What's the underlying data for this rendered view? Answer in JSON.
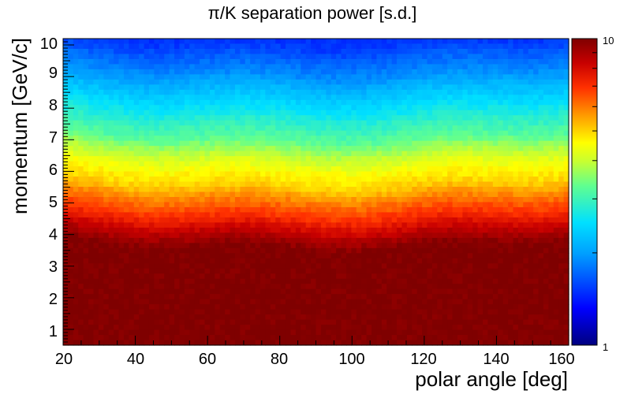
{
  "chart_data": {
    "type": "heatmap",
    "title": "π/K separation power [s.d.]",
    "xlabel": "polar angle [deg]",
    "ylabel": "momentum [GeV/c]",
    "xlim": [
      20,
      160
    ],
    "ylim": [
      0.5,
      10.2
    ],
    "x_ticks": [
      "20",
      "40",
      "60",
      "80",
      "100",
      "120",
      "140",
      "160"
    ],
    "y_ticks": [
      "1",
      "2",
      "3",
      "4",
      "5",
      "6",
      "7",
      "8",
      "9",
      "10"
    ],
    "colorbar": {
      "min": 1,
      "max": 10,
      "scale": "log",
      "labels": [
        "10",
        "1"
      ],
      "palette": "rainbow"
    },
    "description_points": [
      {
        "momentum": 1.0,
        "separation": 10
      },
      {
        "momentum": 3.5,
        "separation": 10
      },
      {
        "momentum": 4.0,
        "separation": 8.5
      },
      {
        "momentum": 4.5,
        "separation": 7
      },
      {
        "momentum": 5.0,
        "separation": 6
      },
      {
        "momentum": 5.5,
        "separation": 5
      },
      {
        "momentum": 6.0,
        "separation": 4.5
      },
      {
        "momentum": 7.0,
        "separation": 3.2
      },
      {
        "momentum": 8.0,
        "separation": 2.5
      },
      {
        "momentum": 9.0,
        "separation": 1.9
      },
      {
        "momentum": 10.0,
        "separation": 1.5
      }
    ],
    "grid": false
  }
}
